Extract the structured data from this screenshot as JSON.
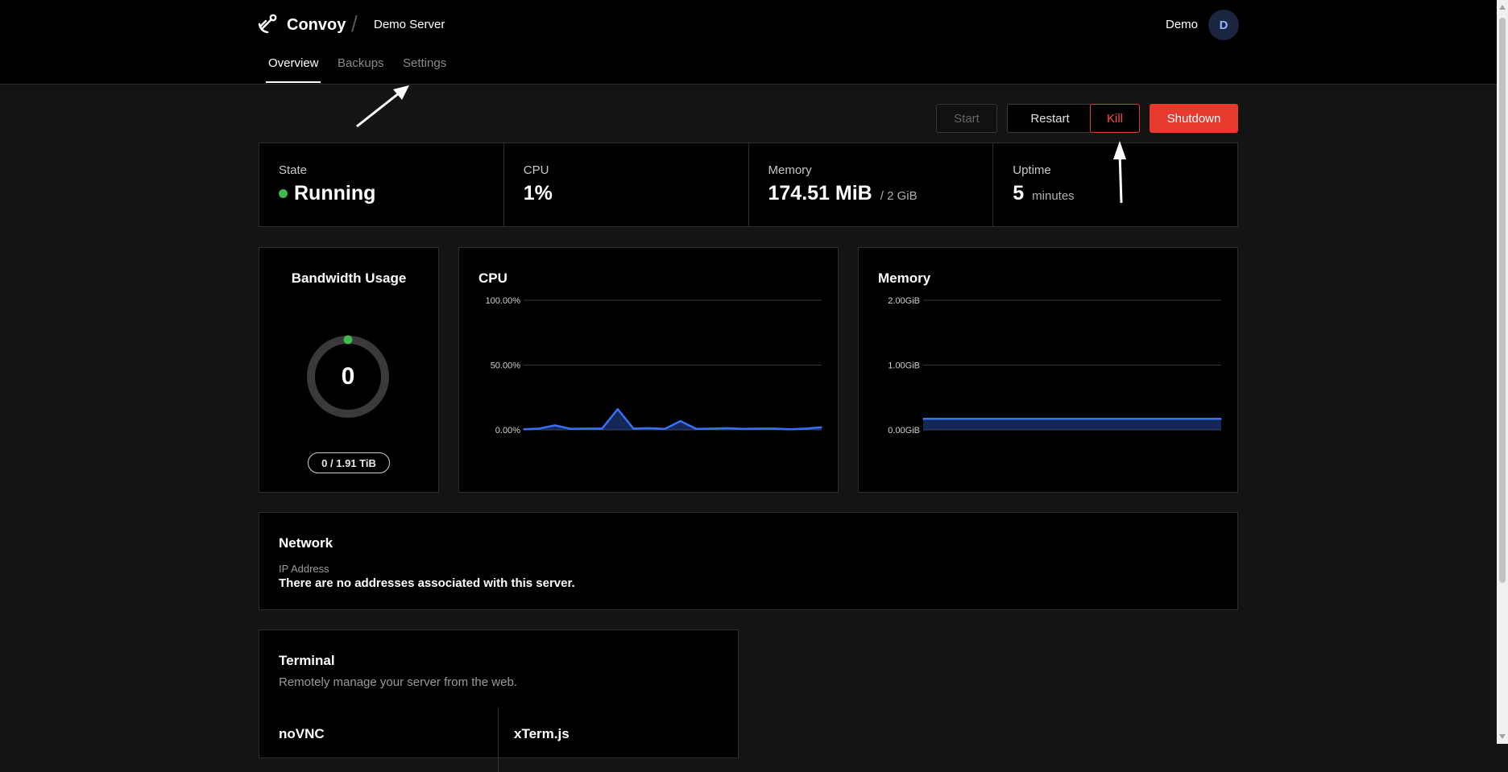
{
  "app": {
    "name": "Convoy",
    "server_name": "Demo Server"
  },
  "user": {
    "name": "Demo",
    "initial": "D"
  },
  "tabs": [
    {
      "label": "Overview",
      "active": true
    },
    {
      "label": "Backups",
      "active": false
    },
    {
      "label": "Settings",
      "active": false
    }
  ],
  "actions": {
    "start": "Start",
    "restart": "Restart",
    "kill": "Kill",
    "shutdown": "Shutdown"
  },
  "stats": {
    "state": {
      "label": "State",
      "value": "Running"
    },
    "cpu": {
      "label": "CPU",
      "value": "1%"
    },
    "memory": {
      "label": "Memory",
      "value": "174.51 MiB",
      "limit": "/ 2 GiB"
    },
    "uptime": {
      "label": "Uptime",
      "value": "5",
      "unit": "minutes"
    }
  },
  "bandwidth": {
    "title": "Bandwidth Usage",
    "value": "0",
    "usage": "0 / 1.91 TiB",
    "fraction": 0
  },
  "chart_data": [
    {
      "type": "area",
      "title": "CPU",
      "ylim": [
        0,
        100
      ],
      "y_ticks": [
        "100.00%",
        "50.00%",
        "0.00%"
      ],
      "values": [
        0.5,
        1,
        3.5,
        0.8,
        1,
        1,
        16,
        1,
        1.3,
        0.8,
        6.8,
        0.8,
        1,
        1.3,
        0.8,
        1,
        1,
        0.5,
        1,
        2
      ],
      "color": "#3a6ff7",
      "grid": true
    },
    {
      "type": "area",
      "title": "Memory",
      "ylim": [
        0,
        2
      ],
      "y_ticks": [
        "2.00GiB",
        "1.00GiB",
        "0.00GiB"
      ],
      "values": [
        0.17,
        0.17,
        0.17,
        0.17,
        0.17,
        0.17,
        0.17,
        0.17,
        0.17,
        0.17,
        0.17,
        0.17,
        0.17,
        0.17,
        0.17,
        0.17,
        0.17,
        0.17,
        0.17,
        0.17
      ],
      "color": "#3a6ff7",
      "grid": true
    }
  ],
  "network": {
    "title": "Network",
    "ip_label": "IP Address",
    "ip_value": "There are no addresses associated with this server."
  },
  "terminal": {
    "title": "Terminal",
    "subtitle": "Remotely manage your server from the web.",
    "options": [
      "noVNC",
      "xTerm.js"
    ]
  },
  "colors": {
    "accent": "#3a6ff7",
    "danger": "#e53a2d",
    "success": "#3fb950"
  }
}
